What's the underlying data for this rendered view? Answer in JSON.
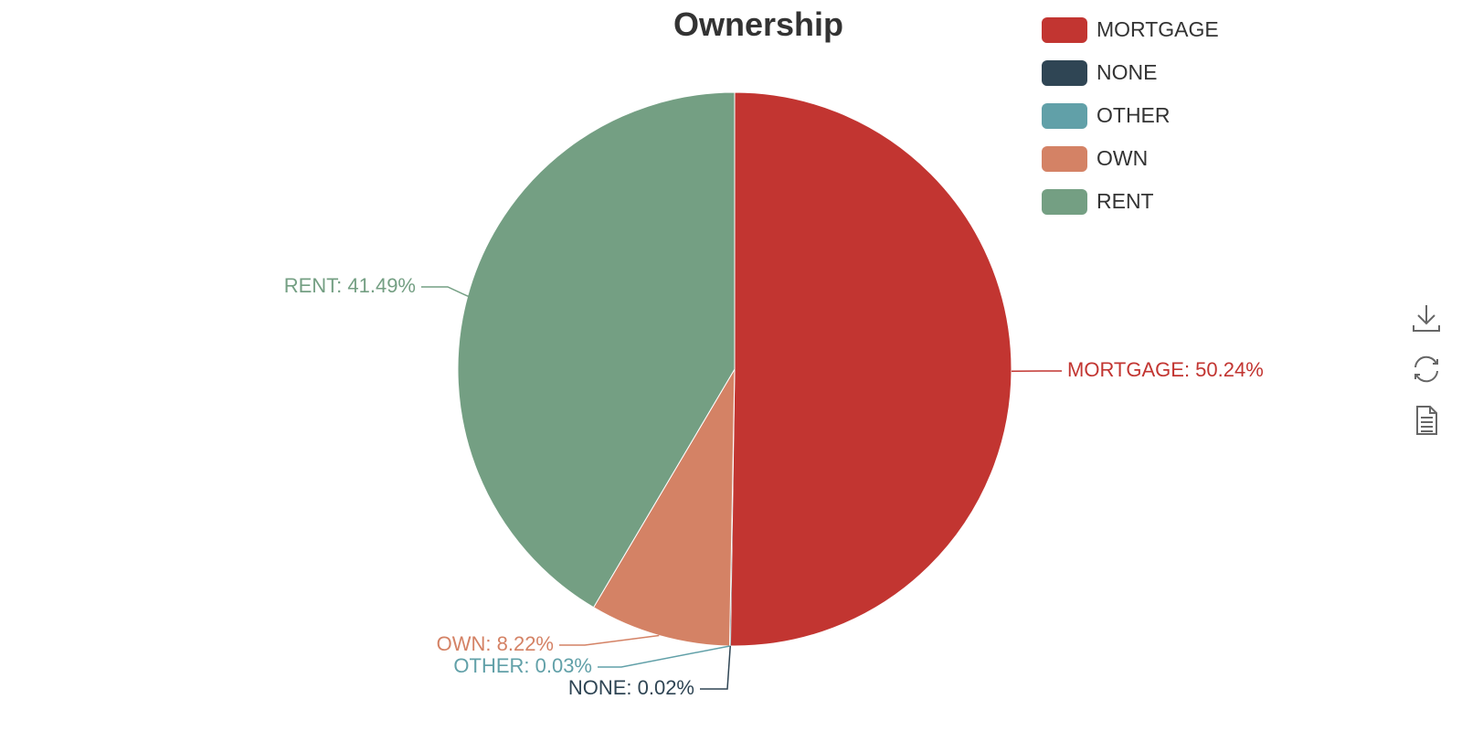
{
  "chart_data": {
    "type": "pie",
    "title": "Ownership",
    "legend_position": "top-right",
    "slices": [
      {
        "name": "MORTGAGE",
        "value": 50.24,
        "label": "MORTGAGE: 50.24%",
        "color": "#c23531"
      },
      {
        "name": "NONE",
        "value": 0.02,
        "label": "NONE: 0.02%",
        "color": "#2f4554"
      },
      {
        "name": "OTHER",
        "value": 0.03,
        "label": "OTHER: 0.03%",
        "color": "#61a0a8"
      },
      {
        "name": "OWN",
        "value": 8.22,
        "label": "OWN: 8.22%",
        "color": "#d48265"
      },
      {
        "name": "RENT",
        "value": 41.49,
        "label": "RENT: 41.49%",
        "color": "#749f83"
      }
    ]
  },
  "toolbox": {
    "icons": [
      "download-icon",
      "refresh-icon",
      "data-view-icon"
    ],
    "color": "#666666"
  }
}
